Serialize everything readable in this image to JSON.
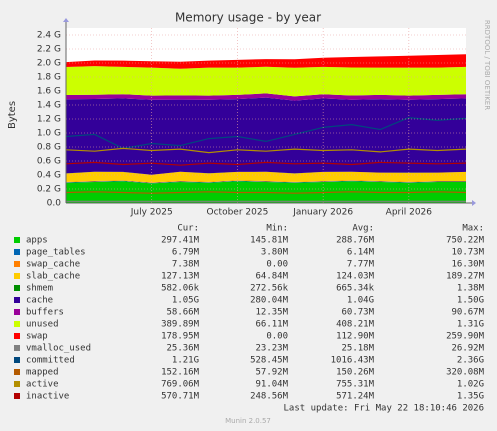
{
  "chart_data": {
    "type": "area",
    "title": "Memory usage - by year",
    "y_label": "Bytes",
    "x": [
      "2025-04",
      "2025-05",
      "2025-06",
      "2025-07",
      "2025-08",
      "2025-09",
      "2025-10",
      "2025-11",
      "2025-12",
      "2026-01",
      "2026-02",
      "2026-03",
      "2026-04",
      "2026-05",
      "2026-06"
    ],
    "xlim": [
      "2025-04",
      "2026-06"
    ],
    "xticks": [
      {
        "value": "2025-07",
        "label": "July 2025"
      },
      {
        "value": "2025-10",
        "label": "October 2025"
      },
      {
        "value": "2026-01",
        "label": "January 2026"
      },
      {
        "value": "2026-04",
        "label": "April 2026"
      }
    ],
    "ylim": [
      0,
      2.5
    ],
    "yticks": [
      {
        "value": 0,
        "label": "0.0"
      },
      {
        "value": 0.2,
        "label": "0.2 G"
      },
      {
        "value": 0.4,
        "label": "0.4 G"
      },
      {
        "value": 0.6,
        "label": "0.6 G"
      },
      {
        "value": 0.8,
        "label": "0.8 G"
      },
      {
        "value": 1.0,
        "label": "1.0 G"
      },
      {
        "value": 1.2,
        "label": "1.2 G"
      },
      {
        "value": 1.4,
        "label": "1.4 G"
      },
      {
        "value": 1.6,
        "label": "1.6 G"
      },
      {
        "value": 1.8,
        "label": "1.8 G"
      },
      {
        "value": 2.0,
        "label": "2.0 G"
      },
      {
        "value": 2.2,
        "label": "2.2 G"
      },
      {
        "value": 2.4,
        "label": "2.4 G"
      }
    ],
    "grid": true,
    "series": [
      {
        "name": "apps",
        "color": "#00cc00",
        "kind": "stack",
        "values": [
          0.29,
          0.3,
          0.31,
          0.28,
          0.3,
          0.29,
          0.31,
          0.3,
          0.29,
          0.3,
          0.31,
          0.3,
          0.29,
          0.3,
          0.3
        ]
      },
      {
        "name": "page_tables",
        "color": "#0066b3",
        "kind": "stack",
        "values": [
          0.007,
          0.007,
          0.007,
          0.007,
          0.007,
          0.007,
          0.007,
          0.007,
          0.007,
          0.007,
          0.007,
          0.007,
          0.007,
          0.007,
          0.007
        ]
      },
      {
        "name": "swap_cache",
        "color": "#ff8000",
        "kind": "stack",
        "values": [
          0.005,
          0.008,
          0.006,
          0.007,
          0.009,
          0.006,
          0.007,
          0.008,
          0.005,
          0.007,
          0.008,
          0.007,
          0.006,
          0.007,
          0.007
        ]
      },
      {
        "name": "slab_cache",
        "color": "#ffcc00",
        "kind": "stack",
        "values": [
          0.12,
          0.13,
          0.12,
          0.11,
          0.13,
          0.12,
          0.12,
          0.13,
          0.12,
          0.13,
          0.12,
          0.12,
          0.13,
          0.12,
          0.13
        ]
      },
      {
        "name": "shmem",
        "color": "#008f00",
        "kind": "stack",
        "values": [
          0.0007,
          0.0007,
          0.0007,
          0.0007,
          0.0007,
          0.0007,
          0.0007,
          0.0007,
          0.0007,
          0.0007,
          0.0007,
          0.0007,
          0.0007,
          0.0007,
          0.0007
        ]
      },
      {
        "name": "cache",
        "color": "#330099",
        "kind": "stack",
        "values": [
          1.06,
          1.04,
          1.05,
          1.07,
          1.03,
          1.05,
          1.04,
          1.06,
          1.04,
          1.05,
          1.03,
          1.05,
          1.04,
          1.05,
          1.05
        ]
      },
      {
        "name": "buffers",
        "color": "#990099",
        "kind": "stack",
        "values": [
          0.06,
          0.06,
          0.06,
          0.06,
          0.06,
          0.06,
          0.06,
          0.06,
          0.06,
          0.06,
          0.06,
          0.06,
          0.06,
          0.06,
          0.06
        ]
      },
      {
        "name": "unused",
        "color": "#ccff00",
        "kind": "stack",
        "values": [
          0.4,
          0.41,
          0.39,
          0.4,
          0.38,
          0.4,
          0.39,
          0.38,
          0.41,
          0.39,
          0.4,
          0.39,
          0.4,
          0.39,
          0.39
        ]
      },
      {
        "name": "swap",
        "color": "#ff0000",
        "kind": "stack",
        "values": [
          0.07,
          0.08,
          0.09,
          0.09,
          0.1,
          0.1,
          0.11,
          0.11,
          0.12,
          0.13,
          0.15,
          0.16,
          0.17,
          0.18,
          0.18
        ]
      },
      {
        "name": "vmalloc_used",
        "color": "#808080",
        "kind": "line",
        "values": [
          0.025,
          0.025,
          0.025,
          0.025,
          0.025,
          0.025,
          0.025,
          0.025,
          0.025,
          0.025,
          0.025,
          0.025,
          0.025,
          0.025,
          0.025
        ]
      },
      {
        "name": "committed",
        "color": "#00487d",
        "kind": "line",
        "values": [
          0.95,
          0.98,
          0.78,
          0.85,
          0.82,
          0.92,
          0.95,
          0.88,
          0.98,
          1.08,
          1.12,
          1.05,
          1.22,
          1.18,
          1.21
        ]
      },
      {
        "name": "mapped",
        "color": "#b35a00",
        "kind": "line",
        "values": [
          0.15,
          0.16,
          0.15,
          0.14,
          0.15,
          0.16,
          0.15,
          0.15,
          0.14,
          0.15,
          0.16,
          0.15,
          0.15,
          0.16,
          0.15
        ]
      },
      {
        "name": "active",
        "color": "#b38f00",
        "kind": "line",
        "values": [
          0.76,
          0.74,
          0.78,
          0.75,
          0.77,
          0.72,
          0.76,
          0.74,
          0.77,
          0.75,
          0.76,
          0.73,
          0.77,
          0.75,
          0.77
        ]
      },
      {
        "name": "inactive",
        "color": "#b30000",
        "kind": "line",
        "values": [
          0.56,
          0.58,
          0.55,
          0.57,
          0.54,
          0.57,
          0.55,
          0.58,
          0.56,
          0.57,
          0.55,
          0.58,
          0.57,
          0.56,
          0.57
        ]
      }
    ]
  },
  "legend_table": {
    "columns": [
      "Cur:",
      "Min:",
      "Avg:",
      "Max:"
    ],
    "rows": [
      [
        "297.41M",
        "145.81M",
        "288.76M",
        "750.22M"
      ],
      [
        "6.79M",
        "3.80M",
        "6.14M",
        "10.73M"
      ],
      [
        "7.38M",
        "0.00",
        "7.77M",
        "16.30M"
      ],
      [
        "127.13M",
        "64.84M",
        "124.03M",
        "189.27M"
      ],
      [
        "582.06k",
        "272.56k",
        "665.34k",
        "1.38M"
      ],
      [
        "1.05G",
        "280.04M",
        "1.04G",
        "1.50G"
      ],
      [
        "58.66M",
        "12.35M",
        "60.73M",
        "90.67M"
      ],
      [
        "389.89M",
        "66.11M",
        "408.21M",
        "1.31G"
      ],
      [
        "178.95M",
        "0.00",
        "112.90M",
        "259.90M"
      ],
      [
        "25.36M",
        "23.23M",
        "25.18M",
        "26.92M"
      ],
      [
        "1.21G",
        "528.45M",
        "1016.43M",
        "2.36G"
      ],
      [
        "152.16M",
        "57.92M",
        "150.26M",
        "320.08M"
      ],
      [
        "769.06M",
        "91.04M",
        "755.31M",
        "1.02G"
      ],
      [
        "570.71M",
        "248.56M",
        "571.24M",
        "1.35G"
      ]
    ]
  },
  "footer": {
    "last_update": "Last update: Fri May 22 18:10:46 2026",
    "version": "Munin 2.0.57"
  },
  "watermark": "RRDTOOL / TOBI OETIKER"
}
